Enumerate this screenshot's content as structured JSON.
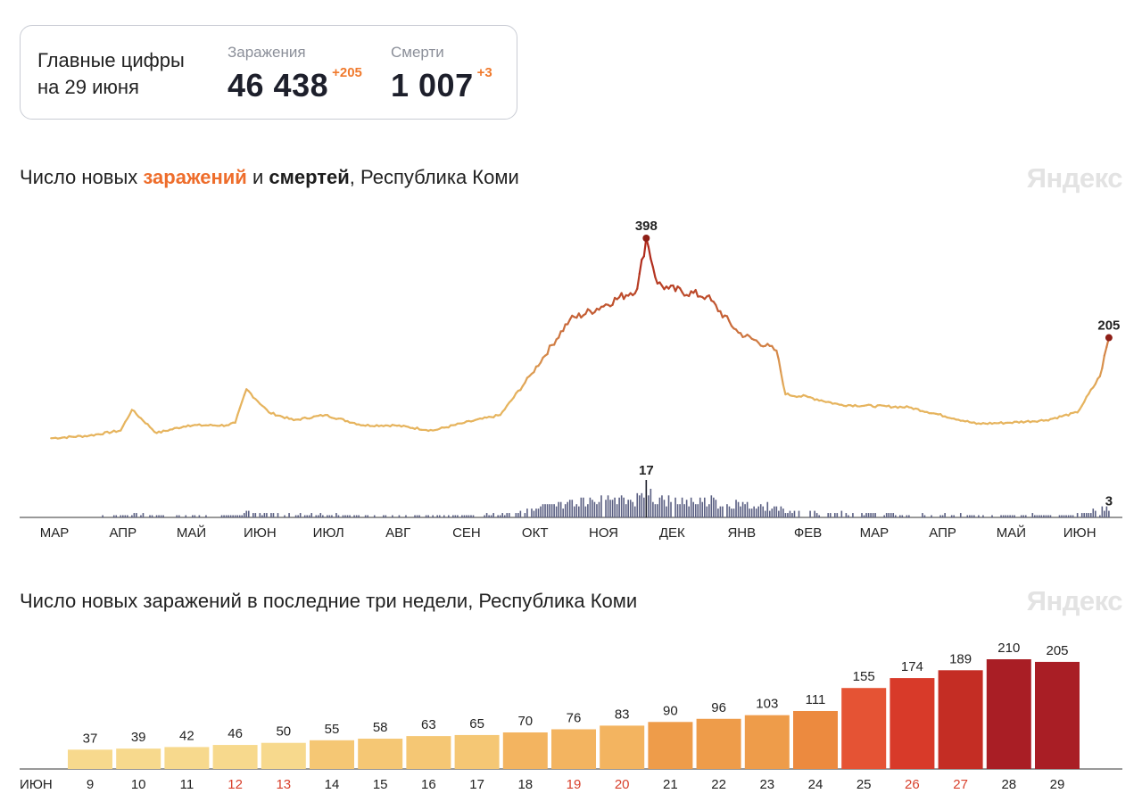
{
  "summary": {
    "title_line1": "Главные цифры",
    "title_line2": "на 29 июня",
    "infections_label": "Заражения",
    "infections_value": "46 438",
    "infections_delta": "+205",
    "deaths_label": "Смерти",
    "deaths_value": "1 007",
    "deaths_delta": "+3"
  },
  "brand": {
    "logo": "Яндекс"
  },
  "colors": {
    "infections_accent": "#ee6d2b",
    "deaths_bars": "#5a5f82",
    "line_low": "#e6b45e",
    "line_high": "#b02b1c"
  },
  "charts": {
    "daily": {
      "title_pre": "Число новых ",
      "title_infections": "заражений",
      "title_mid": " и ",
      "title_deaths": "смертей",
      "title_post": ", Республика Коми"
    },
    "recent": {
      "title": "Число новых заражений в последние три недели, Республика Коми"
    }
  },
  "chart_data": [
    {
      "type": "line",
      "name_text": "Число новых заражений и смертей, Республика Коми",
      "x_axis_months": [
        "МАР",
        "АПР",
        "МАЙ",
        "ИЮН",
        "ИЮЛ",
        "АВГ",
        "СЕН",
        "ОКТ",
        "НОЯ",
        "ДЕК",
        "ЯНВ",
        "ФЕВ",
        "МАР",
        "АПР",
        "МАЙ",
        "ИЮН"
      ],
      "series": [
        {
          "name": "заражений",
          "x": [
            "2020-03-15",
            "2020-04-01",
            "2020-04-15",
            "2020-04-20",
            "2020-05-01",
            "2020-05-15",
            "2020-06-01",
            "2020-06-05",
            "2020-06-10",
            "2020-06-20",
            "2020-07-01",
            "2020-07-15",
            "2020-08-01",
            "2020-08-15",
            "2020-09-01",
            "2020-09-15",
            "2020-10-01",
            "2020-10-15",
            "2020-11-01",
            "2020-11-15",
            "2020-12-01",
            "2020-12-05",
            "2020-12-10",
            "2020-12-15",
            "2021-01-01",
            "2021-01-15",
            "2021-02-01",
            "2021-02-05",
            "2021-02-15",
            "2021-03-01",
            "2021-04-01",
            "2021-05-01",
            "2021-05-15",
            "2021-06-01",
            "2021-06-15",
            "2021-06-25",
            "2021-06-29"
          ],
          "y": [
            10,
            15,
            25,
            65,
            20,
            35,
            35,
            40,
            105,
            60,
            45,
            55,
            35,
            35,
            25,
            40,
            55,
            135,
            240,
            265,
            300,
            398,
            310,
            300,
            285,
            215,
            180,
            95,
            90,
            75,
            70,
            38,
            40,
            45,
            60,
            130,
            205
          ]
        },
        {
          "name": "смертей",
          "peak_label": "17",
          "peak_date": "2020-12-05",
          "last_label": "3",
          "last_date": "2021-06-29",
          "typical_range": [
            0,
            5
          ]
        }
      ],
      "annotations": [
        {
          "text": "398",
          "date": "2020-12-05"
        },
        {
          "text": "205",
          "date": "2021-06-29"
        },
        {
          "text": "17",
          "date": "2020-12-05"
        },
        {
          "text": "3",
          "date": "2021-06-29"
        }
      ]
    },
    {
      "type": "bar",
      "name_text": "Число новых заражений в последние три недели, Республика Коми",
      "month_label": "ИЮН",
      "categories": [
        "9",
        "10",
        "11",
        "12",
        "13",
        "14",
        "15",
        "16",
        "17",
        "18",
        "19",
        "20",
        "21",
        "22",
        "23",
        "24",
        "25",
        "26",
        "27",
        "28",
        "29"
      ],
      "values": [
        37,
        39,
        42,
        46,
        50,
        55,
        58,
        63,
        65,
        70,
        76,
        83,
        90,
        96,
        103,
        111,
        155,
        174,
        189,
        210,
        205
      ],
      "weekend_days": [
        "12",
        "13",
        "19",
        "20",
        "26",
        "27"
      ],
      "weekend_color": "#d8402c"
    }
  ]
}
